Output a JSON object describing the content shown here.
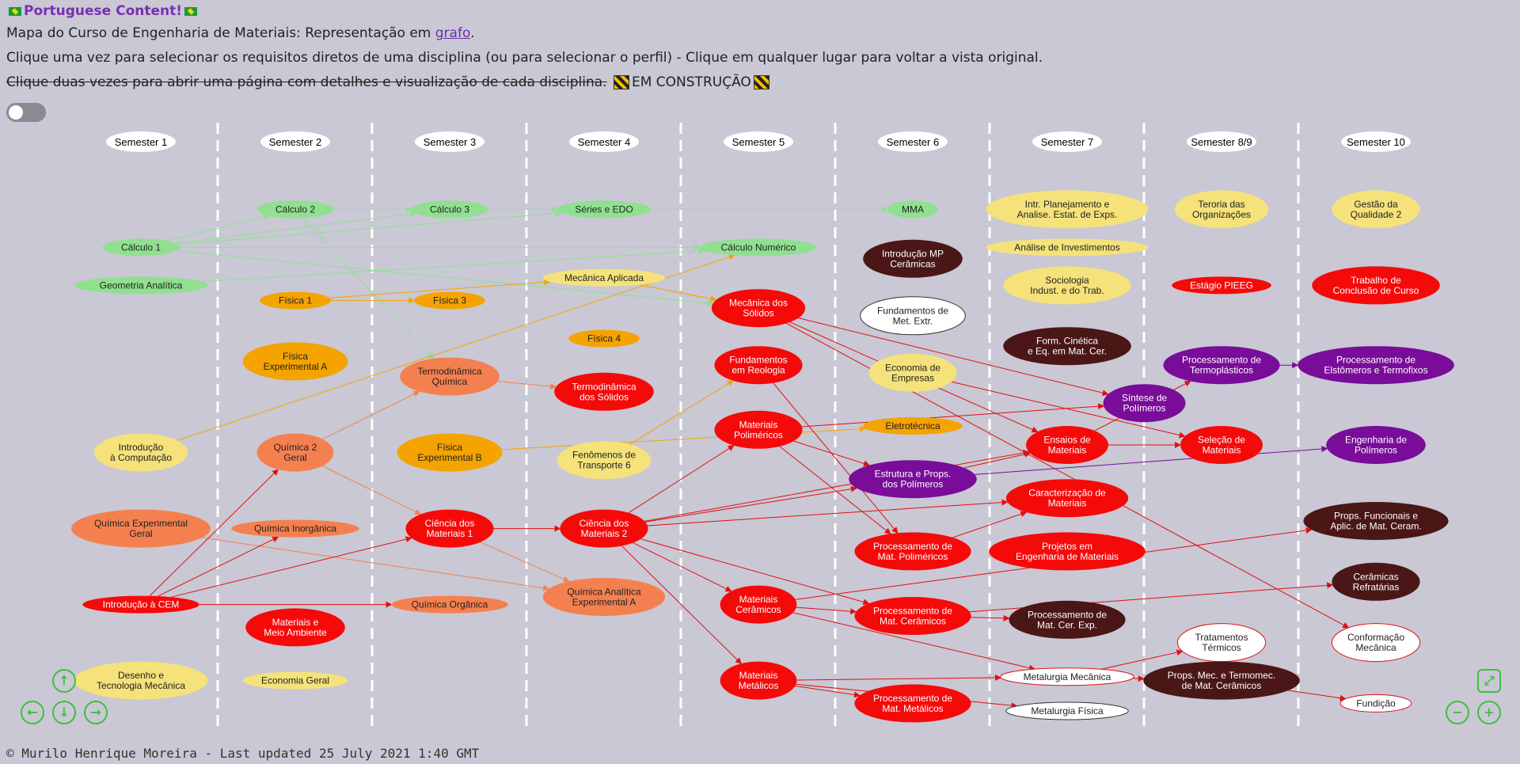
{
  "header": {
    "title": "Portuguese Content!",
    "line1_text": "Mapa do Curso de Engenharia de Materiais: Representação em ",
    "line1_link": "grafo",
    "line1_end": ".",
    "line2": "Clique uma vez para selecionar os requisitos diretos de uma disciplina (ou para selecionar o perfil) - Clique em qualquer lugar para voltar a vista original.",
    "line3_struck": "Clique duas vezes para abrir uma página com detalhes e visualização de cada disciplina.",
    "line3_status": "EM CONSTRUÇÃO"
  },
  "footer": "© Murilo Henrique Moreira - Last updated 25 July 2021 1:40 GMT",
  "colors": {
    "green": "#90e090",
    "yellow": "#f5e27a",
    "orange": "#f5a300",
    "salmon": "#f5804f",
    "red": "#f50a0a",
    "darkred": "#4a1616",
    "purple": "#7a0c9a",
    "white": "#ffffff"
  },
  "semesters": [
    "Semester 1",
    "Semester 2",
    "Semester 3",
    "Semester 4",
    "Semester 5",
    "Semester 6",
    "Semester 7",
    "Semester 8/9",
    "Semester 10"
  ],
  "nodes": [
    {
      "id": "calc1",
      "label": "Cálculo 1",
      "color": "green",
      "col": 0,
      "row": 2.8
    },
    {
      "id": "geo",
      "label": "Geometria Analítica",
      "color": "green",
      "col": 0,
      "row": 3.8
    },
    {
      "id": "intcomp",
      "label": "Introdução\nà Computação",
      "color": "yellow",
      "col": 0,
      "row": 8.2
    },
    {
      "id": "qeg",
      "label": "Química Experimental\nGeral",
      "color": "salmon",
      "col": 0,
      "row": 10.2
    },
    {
      "id": "icem",
      "label": "Introdução à CEM",
      "color": "red",
      "col": 0,
      "row": 12.2
    },
    {
      "id": "desenho",
      "label": "Desenho e\nTecnologia Mecânica",
      "color": "yellow",
      "col": 0,
      "row": 14.2
    },
    {
      "id": "calc2",
      "label": "Cálculo 2",
      "color": "green",
      "col": 1,
      "row": 1.8
    },
    {
      "id": "fis1",
      "label": "Física 1",
      "color": "orange",
      "col": 1,
      "row": 4.2
    },
    {
      "id": "fisexpa",
      "label": "Física\nExperimental A",
      "color": "orange",
      "col": 1,
      "row": 5.8
    },
    {
      "id": "qg2",
      "label": "Química 2\nGeral",
      "color": "salmon",
      "col": 1,
      "row": 8.2
    },
    {
      "id": "qinorg",
      "label": "Química Inorgânica",
      "color": "salmon",
      "col": 1,
      "row": 10.2
    },
    {
      "id": "matamb",
      "label": "Materiais e\nMeio Ambiente",
      "color": "red",
      "col": 1,
      "row": 12.8
    },
    {
      "id": "econ",
      "label": "Economia Geral",
      "color": "yellow",
      "col": 1,
      "row": 14.2
    },
    {
      "id": "calc3",
      "label": "Cálculo 3",
      "color": "green",
      "col": 2,
      "row": 1.8
    },
    {
      "id": "fis3",
      "label": "Física 3",
      "color": "orange",
      "col": 2,
      "row": 4.2
    },
    {
      "id": "termq",
      "label": "Termodinâmica\nQuímica",
      "color": "salmon",
      "col": 2,
      "row": 6.2
    },
    {
      "id": "fisexpb",
      "label": "Física\nExperimental B",
      "color": "orange",
      "col": 2,
      "row": 8.2
    },
    {
      "id": "cm1",
      "label": "Ciência dos\nMateriais 1",
      "color": "red",
      "col": 2,
      "row": 10.2
    },
    {
      "id": "qorg",
      "label": "Química Orgânica",
      "color": "salmon",
      "col": 2,
      "row": 12.2
    },
    {
      "id": "edo",
      "label": "Séries e EDO",
      "color": "green",
      "col": 3,
      "row": 1.8
    },
    {
      "id": "mecap",
      "label": "Mecânica Aplicada",
      "color": "yellow",
      "col": 3,
      "row": 3.6
    },
    {
      "id": "fis4",
      "label": "Física 4",
      "color": "orange",
      "col": 3,
      "row": 5.2
    },
    {
      "id": "termsol",
      "label": "Termodinâmica\ndos Sólidos",
      "color": "red",
      "col": 3,
      "row": 6.6
    },
    {
      "id": "fentr",
      "label": "Fenômenos de\nTransporte 6",
      "color": "yellow",
      "col": 3,
      "row": 8.4
    },
    {
      "id": "cm2",
      "label": "Ciência dos\nMateriais 2",
      "color": "red",
      "col": 3,
      "row": 10.2
    },
    {
      "id": "qaexp",
      "label": "Química Analítica\nExperimental A",
      "color": "salmon",
      "col": 3,
      "row": 12.0
    },
    {
      "id": "calcnum",
      "label": "Cálculo Numérico",
      "color": "green",
      "col": 4,
      "row": 2.8
    },
    {
      "id": "mecsol",
      "label": "Mecânica dos\nSólidos",
      "color": "red",
      "col": 4,
      "row": 4.4
    },
    {
      "id": "reol",
      "label": "Fundamentos\nem Reologia",
      "color": "red",
      "col": 4,
      "row": 5.9
    },
    {
      "id": "matpol",
      "label": "Materiais\nPoliméricos",
      "color": "red",
      "col": 4,
      "row": 7.6
    },
    {
      "id": "matcer",
      "label": "Materiais\nCerâmicos",
      "color": "red",
      "col": 4,
      "row": 12.2
    },
    {
      "id": "matmet",
      "label": "Materiais\nMetálicos",
      "color": "red",
      "col": 4,
      "row": 14.2
    },
    {
      "id": "mma",
      "label": "MMA",
      "color": "green",
      "col": 5,
      "row": 1.8
    },
    {
      "id": "intmp",
      "label": "Introdução MP\nCerâmicas",
      "color": "darkred",
      "col": 5,
      "row": 3.1
    },
    {
      "id": "fundmet",
      "label": "Fundamentos de\nMet. Extr.",
      "color": "white",
      "col": 5,
      "row": 4.6
    },
    {
      "id": "econemp",
      "label": "Economia de\nEmpresas",
      "color": "yellow",
      "col": 5,
      "row": 6.1
    },
    {
      "id": "eletro",
      "label": "Eletrotécnica",
      "color": "orange",
      "col": 5,
      "row": 7.5
    },
    {
      "id": "estpol",
      "label": "Estrutura e Props.\ndos Polímeros",
      "color": "purple",
      "col": 5,
      "row": 8.9
    },
    {
      "id": "procpol",
      "label": "Processamento de\nMat. Poliméricos",
      "color": "red",
      "col": 5,
      "row": 10.8
    },
    {
      "id": "proccer",
      "label": "Processamento de\nMat. Cerâmicos",
      "color": "red",
      "col": 5,
      "row": 12.5
    },
    {
      "id": "procmet",
      "label": "Processamento de\nMat. Metálicos",
      "color": "red",
      "col": 5,
      "row": 14.8
    },
    {
      "id": "planej",
      "label": "Intr. Planejamento e\nAnalise. Estat. de Exps.",
      "color": "yellow",
      "col": 6,
      "row": 1.8
    },
    {
      "id": "anainv",
      "label": "Análise de Investimentos",
      "color": "yellow",
      "col": 6,
      "row": 2.8
    },
    {
      "id": "socio",
      "label": "Sociologia\nIndust. e do Trab.",
      "color": "yellow",
      "col": 6,
      "row": 3.8
    },
    {
      "id": "formcin",
      "label": "Form. Cinética\ne Eq. em Mat. Cer.",
      "color": "darkred",
      "col": 6,
      "row": 5.4
    },
    {
      "id": "ensaios",
      "label": "Ensaios de\nMateriais",
      "color": "red",
      "col": 6,
      "row": 8.0
    },
    {
      "id": "carac",
      "label": "Caracterização de\nMateriais",
      "color": "red",
      "col": 6,
      "row": 9.4
    },
    {
      "id": "projetos",
      "label": "Projetos em\nEngenharia de Materiais",
      "color": "red",
      "col": 6,
      "row": 10.8
    },
    {
      "id": "proccerexp",
      "label": "Processamento de\nMat. Cer. Exp.",
      "color": "darkred",
      "col": 6,
      "row": 12.6
    },
    {
      "id": "metmec",
      "label": "Metalurgia Mecânica",
      "color": "white",
      "col": 6,
      "row": 14.1
    },
    {
      "id": "metfis",
      "label": "Metalurgia Física",
      "color": "white",
      "col": 6,
      "row": 15.0
    },
    {
      "id": "sintese",
      "label": "Síntese de\nPolímeros",
      "color": "purple",
      "col": 6.5,
      "row": 6.9
    },
    {
      "id": "teoria",
      "label": "Teroria das\nOrganizações",
      "color": "yellow",
      "col": 7,
      "row": 1.8
    },
    {
      "id": "estagio",
      "label": "Estágio PIEEG",
      "color": "red",
      "col": 7,
      "row": 3.8
    },
    {
      "id": "proctermo",
      "label": "Processamento de\nTermoplásticos",
      "color": "purple",
      "col": 7,
      "row": 5.9
    },
    {
      "id": "selecao",
      "label": "Seleção de\nMateriais",
      "color": "red",
      "col": 7,
      "row": 8.0
    },
    {
      "id": "tratterm",
      "label": "Tratamentos\nTérmicos",
      "color": "white",
      "col": 7,
      "row": 13.2
    },
    {
      "id": "propsmec",
      "label": "Props. Mec. e Termomec.\nde Mat. Cerâmicos",
      "color": "darkred",
      "col": 7,
      "row": 14.2
    },
    {
      "id": "gestao",
      "label": "Gestão da\nQualidade 2",
      "color": "yellow",
      "col": 8,
      "row": 1.8
    },
    {
      "id": "tcc",
      "label": "Trabalho de\nConclusão de Curso",
      "color": "red",
      "col": 8,
      "row": 3.8
    },
    {
      "id": "procelast",
      "label": "Processamento de\nElstômeros e Termofixos",
      "color": "purple",
      "col": 8,
      "row": 5.9
    },
    {
      "id": "engpol",
      "label": "Engenharia de\nPolímeros",
      "color": "purple",
      "col": 8,
      "row": 8.0
    },
    {
      "id": "propsfunc",
      "label": "Props. Funcionais e\nAplic. de Mat. Ceram.",
      "color": "darkred",
      "col": 8,
      "row": 10.0
    },
    {
      "id": "cerref",
      "label": "Cerâmicas\nRefratárias",
      "color": "darkred",
      "col": 8,
      "row": 11.6
    },
    {
      "id": "conform",
      "label": "Conformação\nMecânica",
      "color": "white",
      "col": 8,
      "row": 13.2
    },
    {
      "id": "fundicao",
      "label": "Fundição",
      "color": "white",
      "col": 8,
      "row": 14.8
    }
  ],
  "edges": [
    [
      "calc1",
      "calc2",
      "green"
    ],
    [
      "calc1",
      "calc3",
      "green"
    ],
    [
      "calc1",
      "edo",
      "green"
    ],
    [
      "calc1",
      "calcnum",
      "green"
    ],
    [
      "calc2",
      "calc3",
      "green"
    ],
    [
      "calc3",
      "edo",
      "green"
    ],
    [
      "edo",
      "mma",
      "green"
    ],
    [
      "geo",
      "calcnum",
      "green"
    ],
    [
      "calc2",
      "termq",
      "green"
    ],
    [
      "calc1",
      "mecsol",
      "green"
    ],
    [
      "fis1",
      "fis3",
      "orange"
    ],
    [
      "fis1",
      "mecap",
      "orange"
    ],
    [
      "intcomp",
      "calcnum",
      "orange"
    ],
    [
      "fisexpb",
      "eletro",
      "orange"
    ],
    [
      "fentr",
      "reol",
      "orange"
    ],
    [
      "mecap",
      "mecsol",
      "orange"
    ],
    [
      "qg2",
      "termq",
      "salmon"
    ],
    [
      "termq",
      "termsol",
      "salmon"
    ],
    [
      "qg2",
      "cm1",
      "salmon"
    ],
    [
      "qeg",
      "qaexp",
      "salmon"
    ],
    [
      "cm1",
      "qaexp",
      "salmon"
    ],
    [
      "icem",
      "qg2",
      "red"
    ],
    [
      "icem",
      "qinorg",
      "red"
    ],
    [
      "icem",
      "cm1",
      "red"
    ],
    [
      "icem",
      "qorg",
      "red"
    ],
    [
      "cm1",
      "cm2",
      "red"
    ],
    [
      "cm2",
      "matpol",
      "red"
    ],
    [
      "cm2",
      "matcer",
      "red"
    ],
    [
      "cm2",
      "matmet",
      "red"
    ],
    [
      "cm2",
      "estpol",
      "red"
    ],
    [
      "cm2",
      "carac",
      "red"
    ],
    [
      "cm2",
      "ensaios",
      "red"
    ],
    [
      "cm2",
      "proccer",
      "red"
    ],
    [
      "matpol",
      "procpol",
      "red"
    ],
    [
      "matpol",
      "estpol",
      "red"
    ],
    [
      "matpol",
      "sintese",
      "red"
    ],
    [
      "reol",
      "procpol",
      "red"
    ],
    [
      "mecsol",
      "ensaios",
      "red"
    ],
    [
      "mecsol",
      "sintese",
      "red"
    ],
    [
      "mecsol",
      "conform",
      "red"
    ],
    [
      "matcer",
      "proccer",
      "red"
    ],
    [
      "matcer",
      "metmec",
      "red"
    ],
    [
      "matcer",
      "propsfunc",
      "red"
    ],
    [
      "matmet",
      "procmet",
      "red"
    ],
    [
      "matmet",
      "metmec",
      "red"
    ],
    [
      "matmet",
      "metfis",
      "red"
    ],
    [
      "proccer",
      "proccerexp",
      "red"
    ],
    [
      "proccer",
      "cerref",
      "red"
    ],
    [
      "procpol",
      "carac",
      "red"
    ],
    [
      "metmec",
      "tratterm",
      "red"
    ],
    [
      "metmec",
      "propsmec",
      "red"
    ],
    [
      "propsmec",
      "fundicao",
      "red"
    ],
    [
      "ensaios",
      "selecao",
      "red"
    ],
    [
      "ensaios",
      "proctermo",
      "red"
    ],
    [
      "estpol",
      "ensaios",
      "red"
    ],
    [
      "econemp",
      "selecao",
      "red"
    ],
    [
      "estpol",
      "engpol",
      "purple"
    ],
    [
      "proctermo",
      "procelast",
      "purple"
    ]
  ],
  "nav": {
    "up": "↑",
    "left": "←",
    "down": "↓",
    "right": "→",
    "fit": "⤢",
    "zoomout": "−",
    "zoomin": "+"
  }
}
